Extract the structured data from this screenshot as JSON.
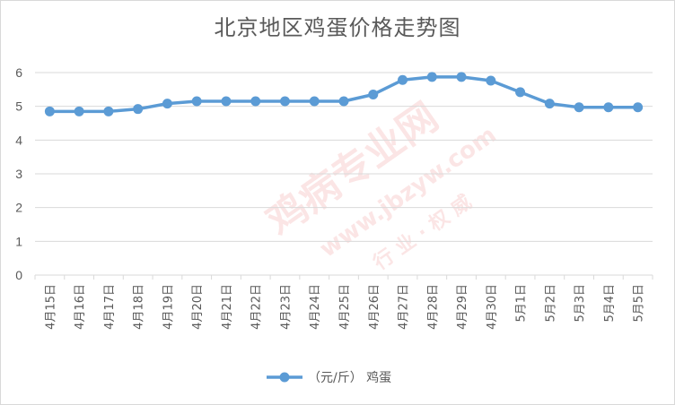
{
  "chart_data": {
    "type": "line",
    "title": "北京地区鸡蛋价格走势图",
    "categories": [
      "4月15日",
      "4月16日",
      "4月17日",
      "4月18日",
      "4月19日",
      "4月20日",
      "4月21日",
      "4月22日",
      "4月23日",
      "4月24日",
      "4月25日",
      "4月26日",
      "4月27日",
      "4月28日",
      "4月29日",
      "4月30日",
      "5月1日",
      "5月2日",
      "5月3日",
      "5月4日",
      "5月5日"
    ],
    "series": [
      {
        "name": "（元/斤） 鸡蛋",
        "values": [
          4.85,
          4.85,
          4.85,
          4.92,
          5.08,
          5.15,
          5.15,
          5.15,
          5.15,
          5.15,
          5.15,
          5.35,
          5.78,
          5.87,
          5.87,
          5.76,
          5.42,
          5.08,
          4.97,
          4.97,
          4.97
        ],
        "color": "#5b9bd5"
      }
    ],
    "yticks": [
      "0",
      "1",
      "2",
      "3",
      "4",
      "5",
      "6"
    ],
    "ylim": [
      0,
      6
    ],
    "grid": true,
    "legend": "bottom"
  },
  "watermark": {
    "main": "鸡病专业网",
    "url": "www.jbzyw.com",
    "sub": "行 业 · 权 威"
  }
}
